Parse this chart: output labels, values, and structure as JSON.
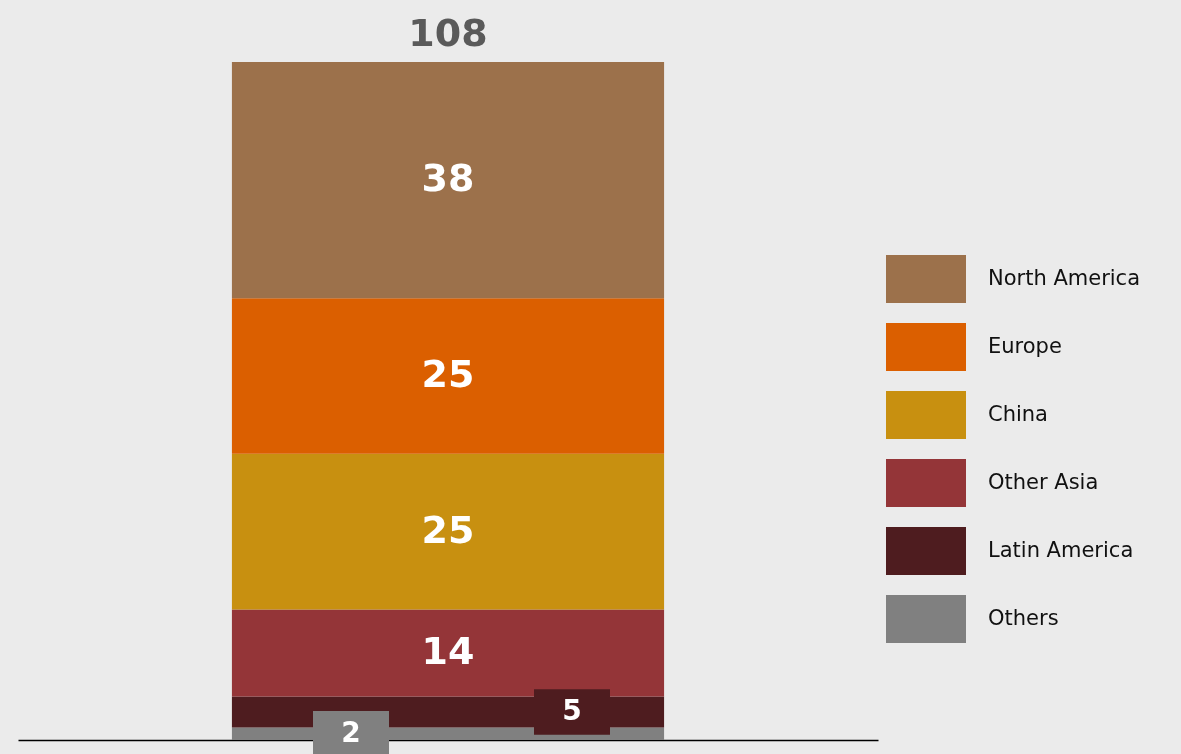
{
  "chart_data": {
    "type": "bar",
    "stacked": true,
    "categories": [
      null
    ],
    "series": [
      {
        "name": "Others",
        "color": "#808080",
        "values": [
          2
        ]
      },
      {
        "name": "Latin America",
        "color": "#4e1c1f",
        "values": [
          5
        ]
      },
      {
        "name": "Other Asia",
        "color": "#943538",
        "values": [
          14
        ]
      },
      {
        "name": "China",
        "color": "#c89010",
        "values": [
          25
        ]
      },
      {
        "name": "Europe",
        "color": "#db5f00",
        "values": [
          25
        ]
      },
      {
        "name": "North America",
        "color": "#9c714b",
        "values": [
          38
        ]
      }
    ],
    "data_labels": true,
    "totals": [
      "108"
    ],
    "legend": "right"
  }
}
